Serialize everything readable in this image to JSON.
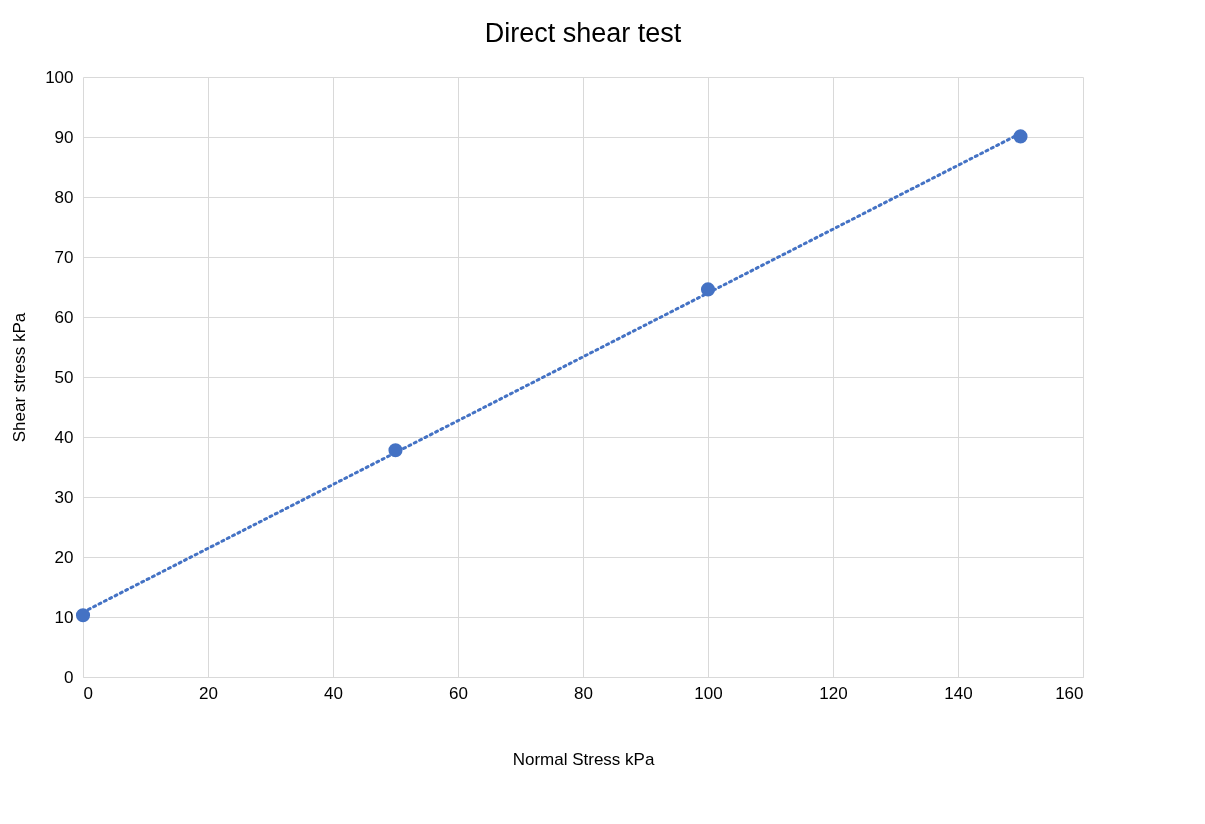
{
  "chart_data": {
    "type": "scatter",
    "title": "Direct shear test",
    "xlabel": "Normal Stress kPa",
    "ylabel": "Shear stress kPa",
    "xlim": [
      0,
      160
    ],
    "xticks": [
      0,
      20,
      40,
      60,
      80,
      100,
      120,
      140,
      160
    ],
    "ylim": [
      0,
      100
    ],
    "yticks": [
      0,
      10,
      20,
      30,
      40,
      50,
      60,
      70,
      80,
      90,
      100
    ],
    "grid": true,
    "series": [
      {
        "color": "#4472c4",
        "marker": "circle",
        "x": [
          0,
          50,
          100,
          150
        ],
        "values": [
          10.3,
          37.8,
          64.6,
          90.1
        ]
      },
      {
        "type": "line",
        "color": "#4472c4",
        "line_style": "dotted",
        "x": [
          0,
          150
        ],
        "values": [
          10.8,
          90.6
        ]
      }
    ]
  }
}
